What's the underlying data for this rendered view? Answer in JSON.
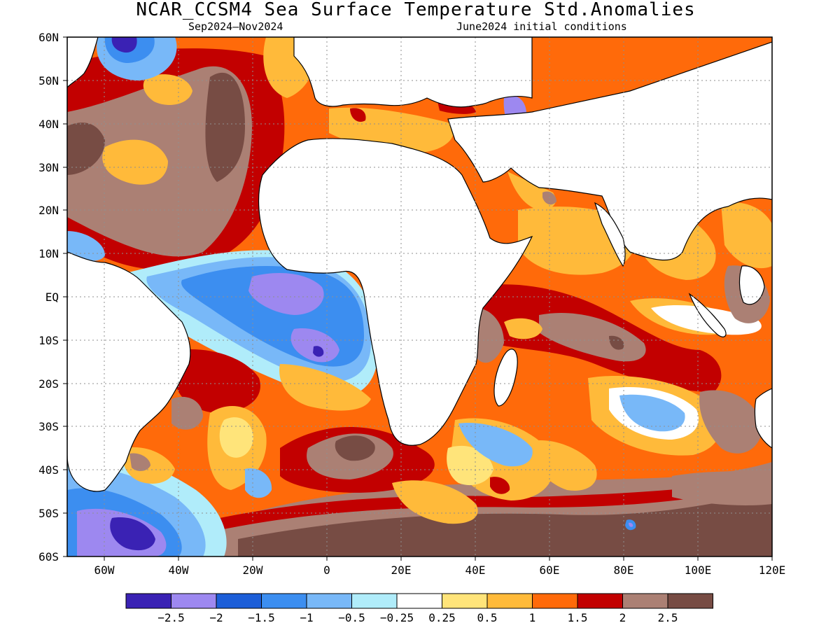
{
  "title": "NCAR_CCSM4 Sea Surface Temperature Std.Anomalies",
  "subtitle_left": "Sep2024–Nov2024",
  "subtitle_right": "June2024 initial conditions",
  "lon_labels": [
    "60W",
    "40W",
    "20W",
    "0",
    "20E",
    "40E",
    "60E",
    "80E",
    "100E",
    "120E"
  ],
  "lat_labels": [
    "60N",
    "50N",
    "40N",
    "30N",
    "20N",
    "10N",
    "EQ",
    "10S",
    "20S",
    "30S",
    "40S",
    "50S",
    "60S"
  ],
  "colorbar": {
    "colors": [
      "#3a22b4",
      "#9d88f0",
      "#1c5ed8",
      "#3c8ef0",
      "#78b8f8",
      "#b0ecfa",
      "#ffffff",
      "#ffe47a",
      "#ffba3a",
      "#ff6a0a",
      "#c20000",
      "#ab8074",
      "#774c44"
    ],
    "labels": [
      "−2.5",
      "−2",
      "−1.5",
      "−1",
      "−0.5",
      "−0.25",
      "0.25",
      "0.5",
      "1",
      "1.5",
      "2",
      "2.5"
    ]
  },
  "chart_data": {
    "type": "heatmap",
    "variable": "Sea Surface Temperature Std.Anomalies",
    "period": "Sep2024–Nov2024",
    "initial_conditions": "June2024",
    "lon_range": [
      -70,
      120
    ],
    "lat_range": [
      -60,
      60
    ],
    "grid": true,
    "contour_levels": [
      -2.5,
      -2,
      -1.5,
      -1,
      -0.5,
      -0.25,
      0.25,
      0.5,
      1,
      1.5,
      2,
      2.5
    ]
  }
}
